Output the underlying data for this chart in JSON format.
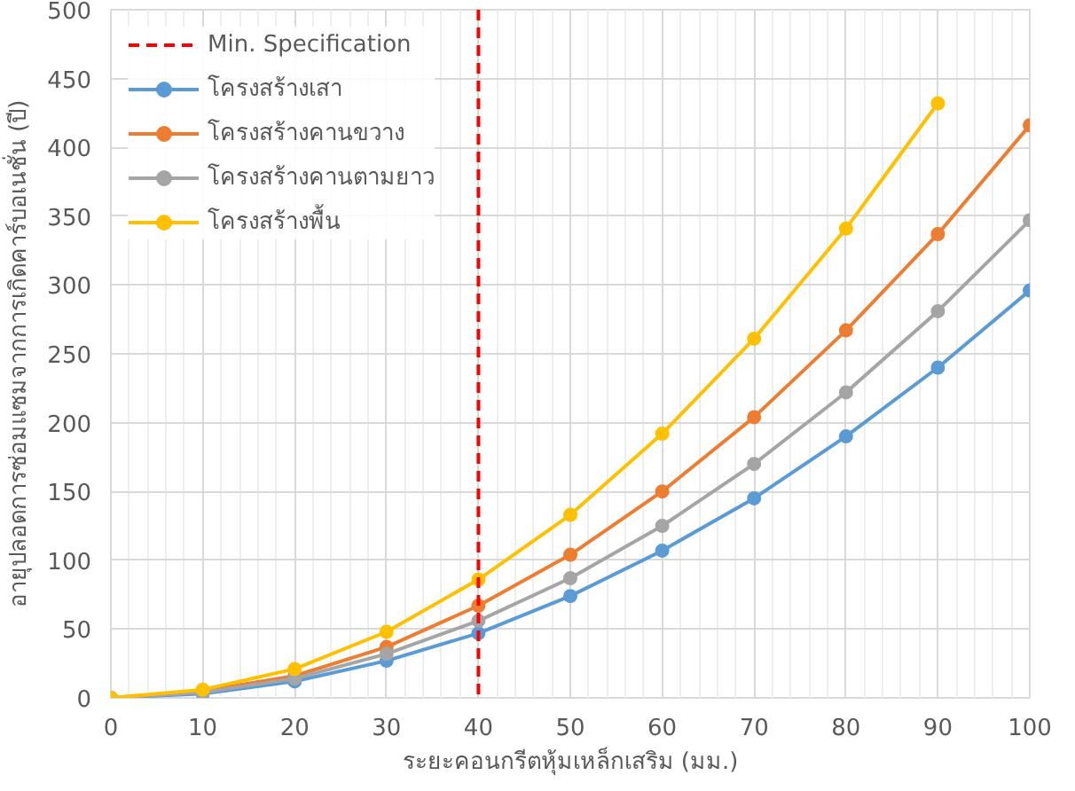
{
  "chart_data": {
    "type": "line",
    "xlabel": "ระยะคอนกรีตหุ้มเหล็กเสริม (มม.)",
    "ylabel": "อายุปลอดการซ่อมแซมจากการเกิดคาร์บอเนชั่น (ปี)",
    "x": [
      0,
      10,
      20,
      30,
      40,
      50,
      60,
      70,
      80,
      90,
      100
    ],
    "series": [
      {
        "name": "โครงสร้างเสา",
        "color": "#5b9bd5",
        "values": [
          0,
          3,
          12,
          27,
          47,
          74,
          107,
          145,
          190,
          240,
          296
        ]
      },
      {
        "name": "โครงสร้างคานขวาง",
        "color": "#ed7d31",
        "values": [
          0,
          5,
          16,
          37,
          67,
          104,
          150,
          204,
          267,
          337,
          416
        ]
      },
      {
        "name": "โครงสร้างคานตามยาว",
        "color": "#a5a5a5",
        "values": [
          0,
          4,
          14,
          32,
          56,
          87,
          125,
          170,
          222,
          281,
          347
        ]
      },
      {
        "name": "โครงสร้างพื้น",
        "color": "#ffc000",
        "values": [
          0,
          6,
          21,
          48,
          86,
          133,
          192,
          261,
          341,
          432,
          null
        ]
      }
    ],
    "ref_lines": [
      {
        "axis": "x",
        "value": 40,
        "label": "Min. Specification",
        "color": "#ff0000",
        "line_style": "dashed"
      }
    ],
    "xlim": [
      0,
      100
    ],
    "xticks": [
      0,
      10,
      20,
      30,
      40,
      50,
      60,
      70,
      80,
      90,
      100
    ],
    "ylim": [
      0,
      500
    ],
    "yticks": [
      0,
      50,
      100,
      150,
      200,
      250,
      300,
      350,
      400,
      450,
      500
    ],
    "grid": true,
    "legend": "top left",
    "marker": "circle",
    "line_style": "solid"
  }
}
